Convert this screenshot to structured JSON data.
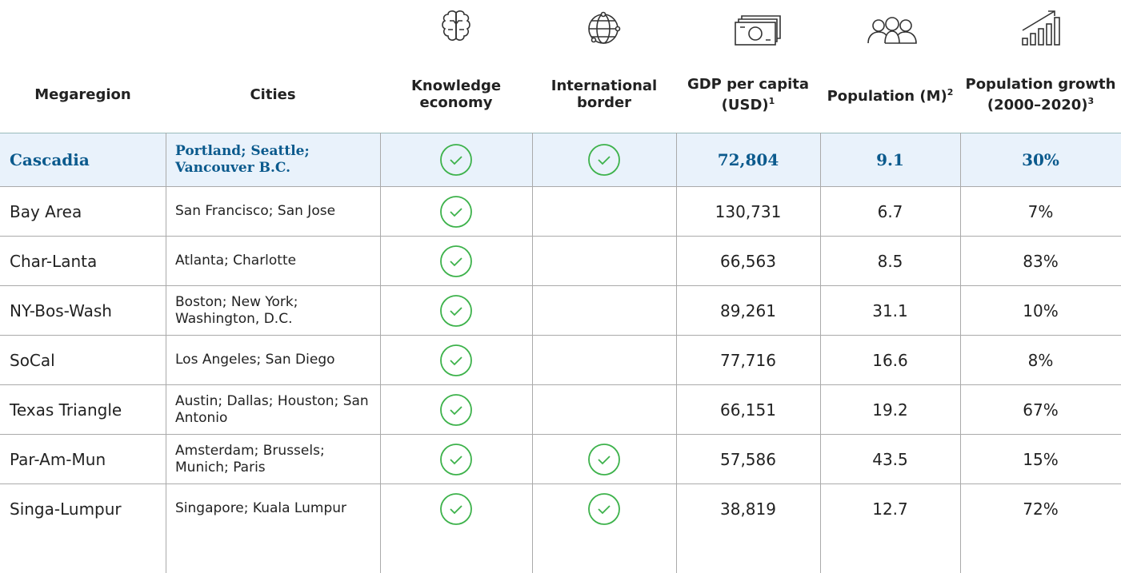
{
  "header": {
    "columns": [
      {
        "label": "Megaregion"
      },
      {
        "label": "Cities"
      },
      {
        "label": "Knowledge economy"
      },
      {
        "label": "International border"
      },
      {
        "label": "GDP per capita (USD)",
        "note": "1"
      },
      {
        "label": "Population (M)",
        "note": "2"
      },
      {
        "label": "Population growth (2000–2020)",
        "note": "3"
      }
    ]
  },
  "table": {
    "rows": [
      [
        "Cascadia",
        "Portland; Seattle; Vancouver B.C.",
        true,
        true,
        "72,804",
        "9.1",
        "30%"
      ],
      [
        "Bay Area",
        "San Francisco; San Jose",
        true,
        false,
        "130,731",
        "6.7",
        "7%"
      ],
      [
        "Char-Lanta",
        "Atlanta; Charlotte",
        true,
        false,
        "66,563",
        "8.5",
        "83%"
      ],
      [
        "NY-Bos-Wash",
        "Boston; New York; Washington, D.C.",
        true,
        false,
        "89,261",
        "31.1",
        "10%"
      ],
      [
        "SoCal",
        "Los Angeles; San Diego",
        true,
        false,
        "77,716",
        "16.6",
        "8%"
      ],
      [
        "Texas Triangle",
        "Austin; Dallas; Houston; San Antonio",
        true,
        false,
        "66,151",
        "19.2",
        "67%"
      ],
      [
        "Par-Am-Mun",
        "Amsterdam; Brussels; Munich; Paris",
        true,
        true,
        "57,586",
        "43.5",
        "15%"
      ],
      [
        "Singa-Lumpur",
        "Singapore; Kuala Lumpur",
        true,
        true,
        "38,819",
        "12.7",
        "72%"
      ]
    ]
  }
}
